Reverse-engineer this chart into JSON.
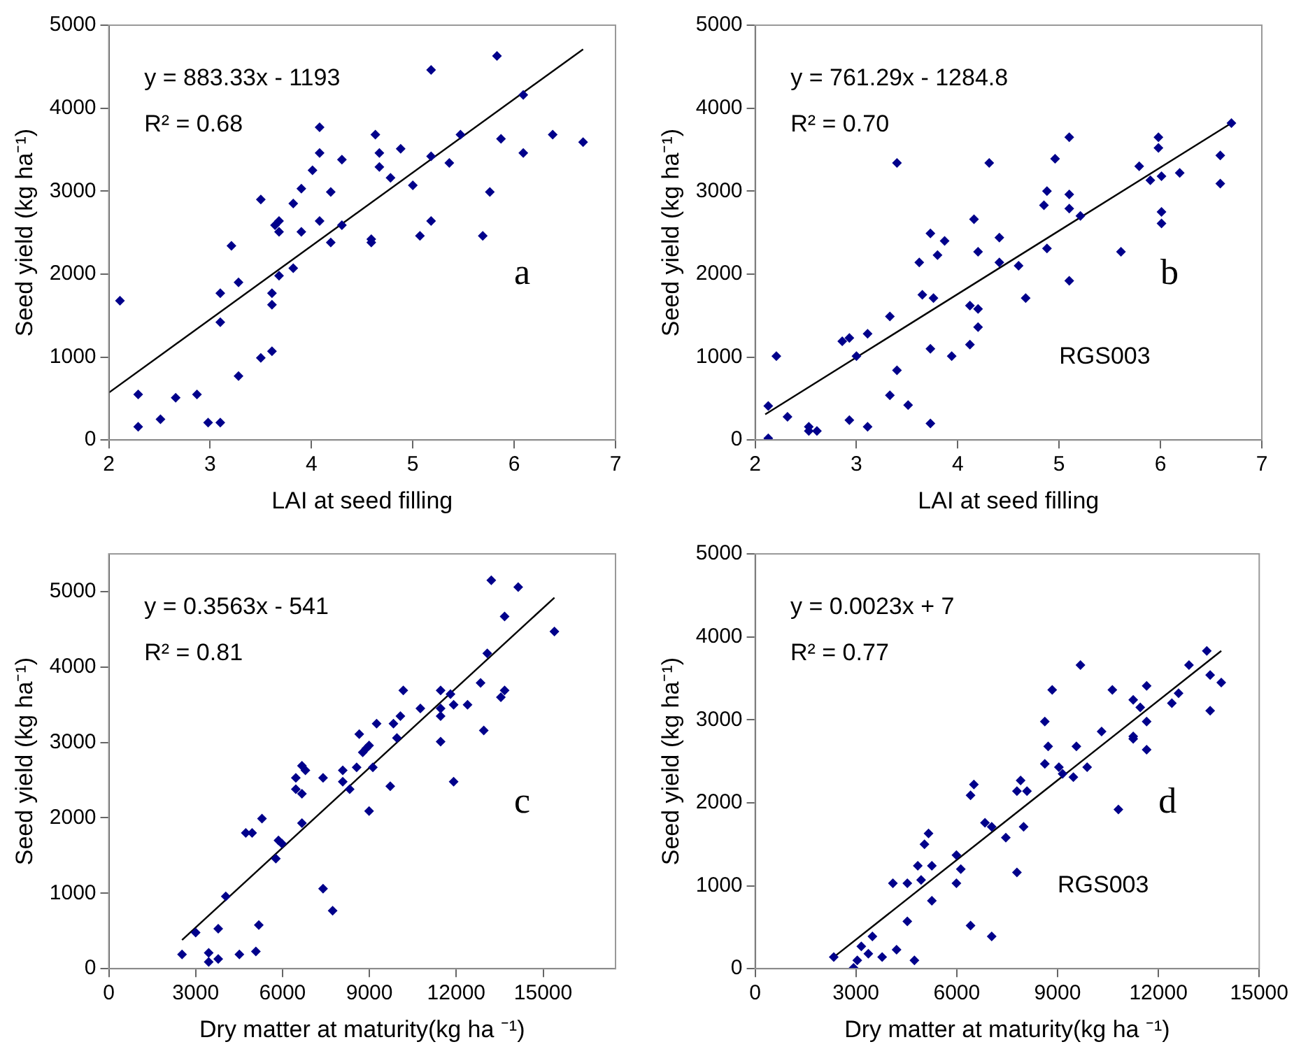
{
  "chart_data": [
    {
      "type": "scatter",
      "xlabel": "LAI at seed filling",
      "ylabel": "Seed yield (kg ha⁻¹)",
      "xlim": [
        2,
        7
      ],
      "xticks": [
        2,
        3,
        4,
        5,
        6,
        7
      ],
      "ylim": [
        0,
        5000
      ],
      "yticks": [
        0,
        1000,
        2000,
        3000,
        4000,
        5000
      ],
      "marker": "diamond",
      "legend": false,
      "annotations": [
        "y = 883.33x - 1193",
        "R² = 0.68",
        "a"
      ],
      "series": [
        {
          "type": "scatter",
          "color": "#00008b",
          "x": [
            2.11,
            2.29,
            2.29,
            2.51,
            2.66,
            2.87,
            2.98,
            3.1,
            3.1,
            3.1,
            3.21,
            3.28,
            3.28,
            3.5,
            3.5,
            3.61,
            3.61,
            3.61,
            3.64,
            3.68,
            3.68,
            3.68,
            3.82,
            3.82,
            3.9,
            3.9,
            4.01,
            4.08,
            4.08,
            4.08,
            4.19,
            4.19,
            4.3,
            4.3,
            4.59,
            4.59,
            4.63,
            4.67,
            4.67,
            4.78,
            4.88,
            5.0,
            5.07,
            5.18,
            5.18,
            5.18,
            5.36,
            5.47,
            5.69,
            5.76,
            5.83,
            5.87,
            6.09,
            6.09,
            6.38,
            6.68
          ],
          "values": [
            1680,
            550,
            160,
            250,
            510,
            550,
            210,
            210,
            1420,
            1770,
            2340,
            1900,
            770,
            2900,
            990,
            1770,
            1630,
            1070,
            2590,
            2640,
            2510,
            1980,
            2850,
            2070,
            3030,
            2510,
            3250,
            3770,
            3460,
            2640,
            2990,
            2380,
            3380,
            2590,
            2420,
            2380,
            3680,
            3460,
            3290,
            3160,
            3510,
            3070,
            2460,
            4460,
            3420,
            2640,
            3340,
            3680,
            2460,
            2990,
            4630,
            3630,
            4160,
            3460,
            3680,
            3590
          ]
        },
        {
          "type": "line",
          "color": "#000000",
          "marker": "none",
          "x": [
            2,
            6.68
          ],
          "values": [
            570,
            4710
          ]
        }
      ]
    },
    {
      "type": "scatter",
      "xlabel": "LAI at seed filling",
      "ylabel": "Seed yield (kg ha⁻¹)",
      "xlim": [
        2,
        7
      ],
      "xticks": [
        2,
        3,
        4,
        5,
        6,
        7
      ],
      "ylim": [
        0,
        5000
      ],
      "yticks": [
        0,
        1000,
        2000,
        3000,
        4000,
        5000
      ],
      "marker": "diamond",
      "legend": false,
      "annotations": [
        "y = 761.29x - 1284.8",
        "R² = 0.70",
        "b",
        "RGS003"
      ],
      "series": [
        {
          "type": "scatter",
          "color": "#00008b",
          "x": [
            2.13,
            2.13,
            2.21,
            2.32,
            2.53,
            2.53,
            2.61,
            2.86,
            2.93,
            2.93,
            3.0,
            3.11,
            3.11,
            3.33,
            3.33,
            3.4,
            3.4,
            3.51,
            3.62,
            3.65,
            3.73,
            3.73,
            3.73,
            3.76,
            3.8,
            3.87,
            3.94,
            4.12,
            4.12,
            4.16,
            4.2,
            4.2,
            4.2,
            4.31,
            4.41,
            4.41,
            4.6,
            4.67,
            4.85,
            4.88,
            4.88,
            4.96,
            5.1,
            5.1,
            5.1,
            5.1,
            5.21,
            5.61,
            5.79,
            5.9,
            5.98,
            5.98,
            6.01,
            6.01,
            6.01,
            6.19,
            6.59,
            6.59,
            6.7
          ],
          "values": [
            410,
            20,
            1010,
            280,
            160,
            110,
            110,
            1190,
            1230,
            240,
            1010,
            1280,
            160,
            1490,
            540,
            3340,
            840,
            420,
            2140,
            1750,
            2490,
            1100,
            200,
            1710,
            2230,
            2400,
            1010,
            1620,
            1150,
            2660,
            1580,
            1360,
            2270,
            3340,
            2440,
            2140,
            2100,
            1710,
            2830,
            3000,
            2310,
            3390,
            3650,
            2960,
            2790,
            1920,
            2700,
            2270,
            3300,
            3130,
            3650,
            3520,
            3180,
            2750,
            2610,
            3220,
            3430,
            3090,
            3820
          ]
        },
        {
          "type": "line",
          "color": "#000000",
          "marker": "none",
          "x": [
            2.1,
            6.7
          ],
          "values": [
            310,
            3820
          ]
        }
      ]
    },
    {
      "type": "scatter",
      "xlabel": "Dry matter at maturity(kg ha ⁻¹)",
      "ylabel": "Seed yield (kg ha⁻¹)",
      "xlim": [
        0,
        17500
      ],
      "xticks": [
        0,
        3000,
        6000,
        9000,
        12000,
        15000
      ],
      "ylim": [
        0,
        5500
      ],
      "yticks": [
        0,
        1000,
        2000,
        3000,
        4000,
        5000
      ],
      "marker": "diamond",
      "legend": false,
      "annotations": [
        "y = 0.3563x - 541",
        "R² = 0.81",
        "c"
      ],
      "series": [
        {
          "type": "scatter",
          "color": "#00008b",
          "x": [
            2530,
            3000,
            3450,
            3450,
            3780,
            3780,
            4040,
            4510,
            4730,
            4950,
            5080,
            5180,
            5290,
            5770,
            5860,
            5980,
            6460,
            6460,
            6670,
            6670,
            6670,
            6790,
            7400,
            7400,
            7730,
            8080,
            8080,
            8320,
            8560,
            8650,
            8770,
            8890,
            8990,
            8990,
            9120,
            9250,
            9720,
            9830,
            9950,
            10070,
            10170,
            10760,
            11460,
            11460,
            11460,
            11460,
            11800,
            11910,
            11910,
            12390,
            12840,
            12950,
            13070,
            13210,
            13540,
            13670,
            13670,
            14140,
            15390
          ],
          "values": [
            190,
            480,
            210,
            90,
            130,
            530,
            960,
            190,
            1800,
            1800,
            230,
            580,
            1990,
            1460,
            1700,
            1660,
            2530,
            2380,
            1930,
            2320,
            2690,
            2630,
            2530,
            1060,
            770,
            2630,
            2480,
            2380,
            2670,
            3110,
            2870,
            2920,
            2960,
            2090,
            2670,
            3250,
            2420,
            3250,
            3060,
            3350,
            3690,
            3450,
            3690,
            3450,
            3350,
            3010,
            3640,
            3500,
            2480,
            3500,
            3790,
            3160,
            4180,
            5150,
            3600,
            3690,
            4670,
            5060,
            4470
          ]
        },
        {
          "type": "line",
          "color": "#000000",
          "marker": "none",
          "x": [
            2530,
            15390
          ],
          "values": [
            380,
            4920
          ]
        }
      ]
    },
    {
      "type": "scatter",
      "xlabel": "Dry matter at maturity(kg ha ⁻¹)",
      "ylabel": "Seed yield (kg ha⁻¹)",
      "xlim": [
        0,
        15000
      ],
      "xticks": [
        0,
        3000,
        6000,
        9000,
        12000,
        15000
      ],
      "ylim": [
        0,
        5000
      ],
      "yticks": [
        0,
        1000,
        2000,
        3000,
        4000,
        5000
      ],
      "marker": "diamond",
      "legend": false,
      "annotations": [
        "y = 0.0023x + 7",
        "R² = 0.77",
        "d",
        "RGS003"
      ],
      "series": [
        {
          "type": "scatter",
          "color": "#00008b",
          "x": [
            2340,
            2930,
            3040,
            3160,
            3370,
            3490,
            3780,
            4100,
            4210,
            4530,
            4530,
            4740,
            4840,
            4940,
            5040,
            5160,
            5260,
            5260,
            5990,
            5990,
            6120,
            6410,
            6410,
            6510,
            6840,
            7040,
            7040,
            7460,
            7790,
            7790,
            7900,
            7990,
            8090,
            8620,
            8620,
            8720,
            8840,
            9040,
            9150,
            9470,
            9560,
            9680,
            9880,
            10310,
            10630,
            10810,
            11250,
            11250,
            11250,
            11460,
            11650,
            11650,
            11650,
            12400,
            12600,
            12910,
            13440,
            13540,
            13540,
            13870
          ],
          "values": [
            140,
            10,
            100,
            270,
            180,
            390,
            140,
            1030,
            230,
            570,
            1030,
            100,
            1240,
            1070,
            1500,
            1630,
            1240,
            820,
            1370,
            1030,
            1200,
            520,
            2090,
            2220,
            1760,
            1710,
            390,
            1580,
            2140,
            1160,
            2270,
            1710,
            2140,
            2470,
            2980,
            2680,
            3360,
            2430,
            2350,
            2310,
            2680,
            3660,
            2430,
            2860,
            3360,
            1920,
            2800,
            2770,
            3240,
            3150,
            3410,
            2980,
            2640,
            3200,
            3320,
            3660,
            3830,
            3540,
            3110,
            3450
          ]
        },
        {
          "type": "line",
          "color": "#000000",
          "marker": "none",
          "x": [
            2340,
            13870
          ],
          "values": [
            140,
            3830
          ]
        }
      ]
    }
  ]
}
